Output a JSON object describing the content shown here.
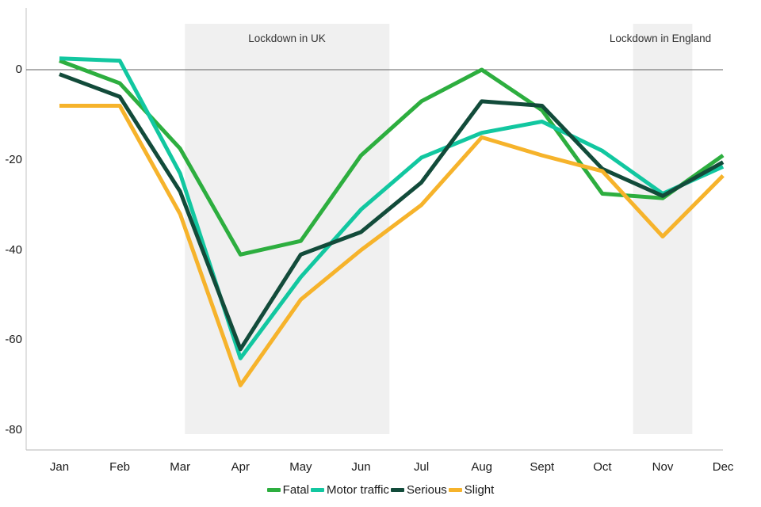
{
  "chart_data": {
    "type": "line",
    "title": "",
    "xlabel": "",
    "ylabel": "",
    "categories": [
      "Jan",
      "Feb",
      "Mar",
      "Apr",
      "May",
      "Jun",
      "Jul",
      "Aug",
      "Sept",
      "Oct",
      "Nov",
      "Dec"
    ],
    "y_ticks": [
      0,
      -20,
      -40,
      -60,
      -80
    ],
    "ylim": [
      -84,
      14
    ],
    "grid": "zero-line-only",
    "legend_position": "bottom",
    "series": [
      {
        "name": "Fatal",
        "color": "#2DAE3F",
        "values": [
          2,
          -3,
          -17.5,
          -41,
          -38,
          -19,
          -7,
          0,
          -9,
          -27.5,
          -28.5,
          -19
        ]
      },
      {
        "name": "Motor traffic",
        "color": "#12C7A0",
        "values": [
          2.5,
          2,
          -23,
          -64,
          -46,
          -31,
          -19.5,
          -14,
          -11.5,
          -18,
          -27.5,
          -21.5
        ]
      },
      {
        "name": "Serious",
        "color": "#124B3A",
        "values": [
          -1,
          -6,
          -27,
          -62,
          -41,
          -36,
          -25,
          -7,
          -8,
          -22,
          -28,
          -20.5
        ]
      },
      {
        "name": "Slight",
        "color": "#F6B32B",
        "values": [
          -8,
          -8,
          -32,
          -70,
          -51,
          -40,
          -30,
          -15,
          -19,
          -22.5,
          -37,
          -23.5
        ]
      }
    ],
    "annotations": [
      {
        "label": "Lockdown in UK",
        "x_from": 2.08,
        "x_to": 5.47,
        "fill": "#F0F0F0"
      },
      {
        "label": "Lockdown in England",
        "x_from": 9.51,
        "x_to": 10.49,
        "fill": "#F0F0F0"
      }
    ],
    "axis_colors": {
      "zero_line": "#5f5f5f",
      "axis_line": "#c3c3c3"
    }
  }
}
